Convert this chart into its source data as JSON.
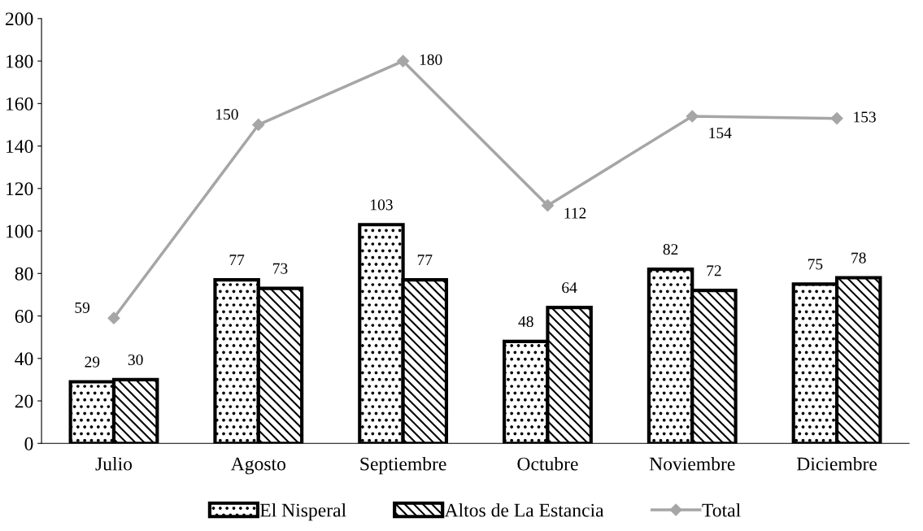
{
  "chart_data": {
    "type": "bar",
    "categories": [
      "Julio",
      "Agosto",
      "Septiembre",
      "Octubre",
      "Noviembre",
      "Diciembre"
    ],
    "series": [
      {
        "name": "El Nisperal",
        "color": "#000000",
        "values": [
          29,
          77,
          103,
          48,
          82,
          75
        ]
      },
      {
        "name": "Altos de La Estancia",
        "color": "#000000",
        "values": [
          30,
          73,
          77,
          64,
          72,
          78
        ]
      },
      {
        "name": "Total",
        "type": "line",
        "color": "#a6a6a6",
        "marker": "diamond",
        "values": [
          59,
          150,
          180,
          112,
          154,
          153
        ]
      }
    ],
    "ylim": [
      0,
      200
    ],
    "yticks": [
      0,
      20,
      40,
      60,
      80,
      100,
      120,
      140,
      160,
      180,
      200
    ],
    "grid": false,
    "legend": "bottom",
    "data_labels": true
  }
}
